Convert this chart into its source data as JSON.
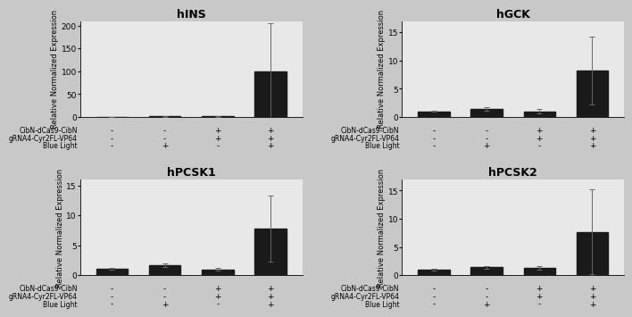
{
  "subplots": [
    {
      "title": "hINS",
      "ylabel": "Relative Normalized Expression",
      "ylim": [
        0,
        210
      ],
      "yticks": [
        0,
        50,
        100,
        150,
        200
      ],
      "values": [
        0.5,
        1.0,
        1.0,
        100.0
      ],
      "errors": [
        0.3,
        0.5,
        0.5,
        105.0
      ],
      "xticklabels_row1": [
        "-",
        "-",
        "+",
        "+"
      ],
      "xticklabels_row2": [
        "-",
        "-",
        "+",
        "+"
      ],
      "xticklabels_row3": [
        "-",
        "+",
        "-",
        "+"
      ],
      "label1": "CibN-dCas9-CibN",
      "label2": "gRNA4-Cyr2FL-VP64",
      "label3": "Blue Light"
    },
    {
      "title": "hGCK",
      "ylabel": "Relative Normalized Expression",
      "ylim": [
        0,
        17
      ],
      "yticks": [
        0,
        5,
        10,
        15
      ],
      "values": [
        1.0,
        1.4,
        1.0,
        8.2
      ],
      "errors": [
        0.1,
        0.3,
        0.4,
        6.0
      ],
      "xticklabels_row1": [
        "-",
        "-",
        "+",
        "+"
      ],
      "xticklabels_row2": [
        "-",
        "-",
        "+",
        "+"
      ],
      "xticklabels_row3": [
        "-",
        "+",
        "-",
        "+"
      ],
      "label1": "CibN-dCas9-CibN",
      "label2": "gRNA4-Cyr2FL-VP64",
      "label3": "Blue Light"
    },
    {
      "title": "hPCSK1",
      "ylabel": "Relative Normalized Expression",
      "ylim": [
        0,
        16
      ],
      "yticks": [
        0,
        5,
        10,
        15
      ],
      "values": [
        1.1,
        1.7,
        1.0,
        7.8
      ],
      "errors": [
        0.15,
        0.25,
        0.2,
        5.5
      ],
      "xticklabels_row1": [
        "-",
        "-",
        "+",
        "+"
      ],
      "xticklabels_row2": [
        "-",
        "-",
        "+",
        "+"
      ],
      "xticklabels_row3": [
        "-",
        "+",
        "-",
        "+"
      ],
      "label1": "CibN-dCas9-CibN",
      "label2": "gRNA4-Cyr2FL-VP64",
      "label3": "Blue Light"
    },
    {
      "title": "hPCSK2",
      "ylabel": "Relative Normalized Expression",
      "ylim": [
        0,
        17
      ],
      "yticks": [
        0,
        5,
        10,
        15
      ],
      "values": [
        1.0,
        1.4,
        1.3,
        7.7
      ],
      "errors": [
        0.15,
        0.2,
        0.3,
        7.5
      ],
      "xticklabels_row1": [
        "-",
        "-",
        "+",
        "+"
      ],
      "xticklabels_row2": [
        "-",
        "-",
        "+",
        "+"
      ],
      "xticklabels_row3": [
        "-",
        "+",
        "-",
        "+"
      ],
      "label1": "CibN-dCas9-CibN",
      "label2": "gRNA4-Cyr2FL-VP64",
      "label3": "Blue Light"
    }
  ],
  "bar_color": "#1a1a1a",
  "bar_width": 0.6,
  "subplot_bg": "#e8e8e8",
  "figure_bg": "#c8c8c8",
  "fontsize_title": 9,
  "fontsize_ylabel": 6,
  "fontsize_tick": 6.5,
  "fontsize_label": 5.5,
  "fontsize_plusminus": 6.5
}
